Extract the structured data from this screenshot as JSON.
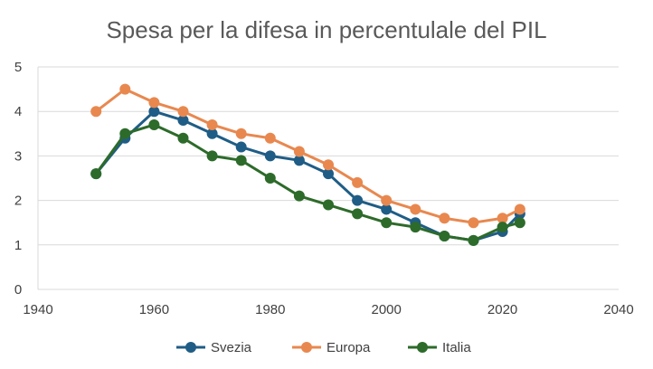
{
  "chart_data": {
    "type": "line",
    "title": "Spesa per la difesa in percentulale del PIL",
    "xlabel": "",
    "ylabel": "",
    "xlim": [
      1940,
      2040
    ],
    "ylim": [
      0,
      5
    ],
    "xticks": [
      1940,
      1960,
      1980,
      2000,
      2020,
      2040
    ],
    "yticks": [
      0,
      1,
      2,
      3,
      4,
      5
    ],
    "grid": "horizontal",
    "legend_position": "bottom",
    "series": [
      {
        "name": "Svezia",
        "color": "#1f5d86",
        "x": [
          1950,
          1955,
          1960,
          1965,
          1970,
          1975,
          1980,
          1985,
          1990,
          1995,
          2000,
          2005,
          2010,
          2015,
          2020,
          2023
        ],
        "y": [
          2.6,
          3.4,
          4.0,
          3.8,
          3.5,
          3.2,
          3.0,
          2.9,
          2.6,
          2.0,
          1.8,
          1.5,
          1.2,
          1.1,
          1.3,
          1.7
        ]
      },
      {
        "name": "Europa",
        "color": "#e8884f",
        "x": [
          1950,
          1955,
          1960,
          1965,
          1970,
          1975,
          1980,
          1985,
          1990,
          1995,
          2000,
          2005,
          2010,
          2015,
          2020,
          2023
        ],
        "y": [
          4.0,
          4.5,
          4.2,
          4.0,
          3.7,
          3.5,
          3.4,
          3.1,
          2.8,
          2.4,
          2.0,
          1.8,
          1.6,
          1.5,
          1.6,
          1.8
        ]
      },
      {
        "name": "Italia",
        "color": "#2d6b2a",
        "x": [
          1950,
          1955,
          1960,
          1965,
          1970,
          1975,
          1980,
          1985,
          1990,
          1995,
          2000,
          2005,
          2010,
          2015,
          2020,
          2023
        ],
        "y": [
          2.6,
          3.5,
          3.7,
          3.4,
          3.0,
          2.9,
          2.5,
          2.1,
          1.9,
          1.7,
          1.5,
          1.4,
          1.2,
          1.1,
          1.4,
          1.5
        ]
      }
    ]
  }
}
